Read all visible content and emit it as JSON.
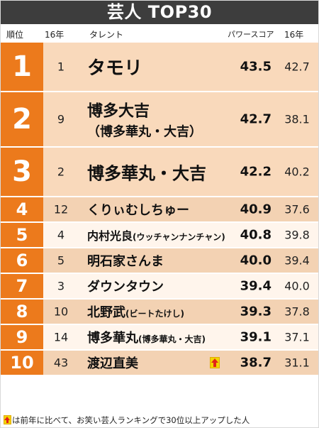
{
  "title": "芸人 TOP30",
  "headers": {
    "rank": "順位",
    "rank16": "16年",
    "talent": "タレント",
    "power": "パワースコア",
    "power16": "16年"
  },
  "rows": [
    {
      "rank": "1",
      "rank16": "1",
      "name": "タモリ",
      "name_sub": "",
      "name_line2": "",
      "power": "43.5",
      "power16": "42.7",
      "up": false
    },
    {
      "rank": "2",
      "rank16": "9",
      "name": "博多大吉",
      "name_sub": "",
      "name_line2": "（博多華丸・大吉）",
      "power": "42.7",
      "power16": "38.1",
      "up": false
    },
    {
      "rank": "3",
      "rank16": "2",
      "name": "博多華丸・大吉",
      "name_sub": "",
      "name_line2": "",
      "power": "42.2",
      "power16": "40.2",
      "up": false
    },
    {
      "rank": "4",
      "rank16": "12",
      "name": "くりぃむしちゅー",
      "name_sub": "",
      "name_line2": "",
      "power": "40.9",
      "power16": "37.6",
      "up": false
    },
    {
      "rank": "5",
      "rank16": "4",
      "name": "内村光良",
      "name_sub": "(ウッチャンナンチャン)",
      "name_line2": "",
      "power": "40.8",
      "power16": "39.8",
      "up": false
    },
    {
      "rank": "6",
      "rank16": "5",
      "name": "明石家さんま",
      "name_sub": "",
      "name_line2": "",
      "power": "40.0",
      "power16": "39.4",
      "up": false
    },
    {
      "rank": "7",
      "rank16": "3",
      "name": "ダウンタウン",
      "name_sub": "",
      "name_line2": "",
      "power": "39.4",
      "power16": "40.0",
      "up": false
    },
    {
      "rank": "8",
      "rank16": "10",
      "name": "北野武",
      "name_sub": "(ビートたけし)",
      "name_line2": "",
      "power": "39.3",
      "power16": "37.8",
      "up": false
    },
    {
      "rank": "9",
      "rank16": "14",
      "name": "博多華丸",
      "name_sub": "(博多華丸・大吉)",
      "name_line2": "",
      "power": "39.1",
      "power16": "37.1",
      "up": false
    },
    {
      "rank": "10",
      "rank16": "43",
      "name": "渡辺直美",
      "name_sub": "",
      "name_line2": "",
      "power": "38.7",
      "power16": "31.1",
      "up": true
    }
  ],
  "footnote": "は前年に比べて、お笑い芸人ランキングで30位以上アップした人",
  "icons": {
    "up": "up-arrow-icon"
  },
  "colors": {
    "rank_orange": "#ec7a1c",
    "title_bg": "#3d3d3d",
    "up_yellow": "#f2d500",
    "up_red": "#e2231a"
  }
}
